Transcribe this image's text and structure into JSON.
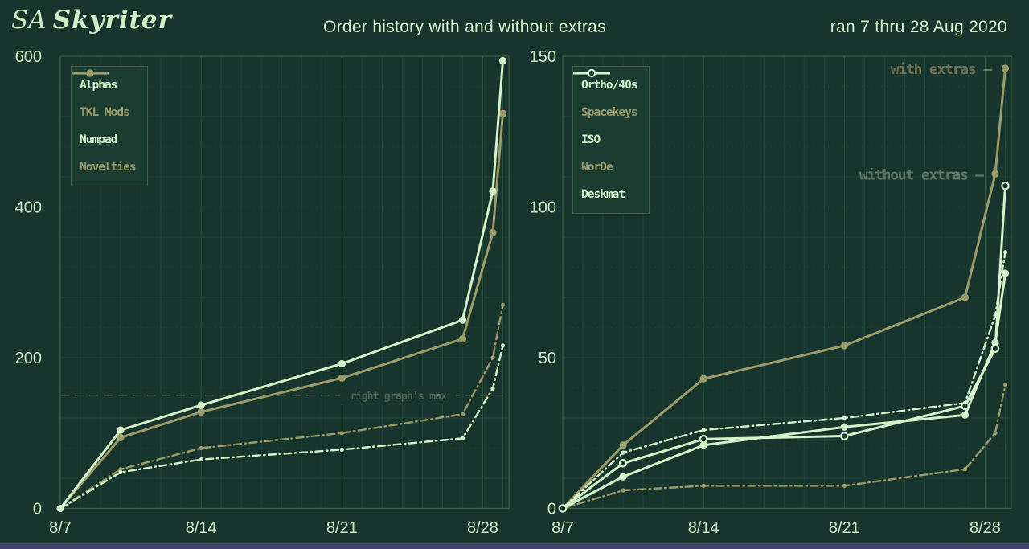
{
  "header": {
    "logo_prefix": "SA",
    "logo_name": "Skyriter",
    "title": "Order history with and without extras",
    "date_range": "ran 7 thru 28 Aug 2020"
  },
  "colors": {
    "background": "#17352c",
    "series_light": "#d6f2cb",
    "series_olive": "#9c9b6a",
    "axis_text": "#cdebc3",
    "title_text": "#d6f2cb",
    "logo_text": "#cfeec6",
    "grid_day": "#1f4337",
    "grid_week": "#2a5440",
    "grid_dot": "#1e4134",
    "plot_border": "#3c5e4c",
    "legend_bg": "#1b3c30",
    "legend_border": "#44604f",
    "ref_line": "#4d6450",
    "footer_bar": "#3e4367"
  },
  "chart_data": [
    {
      "type": "line",
      "position": "left",
      "x_unit": "date (Aug 2020)",
      "x_days": [
        7,
        10,
        14,
        21,
        27,
        28.5,
        29
      ],
      "x_ticks": [
        {
          "day": 7,
          "label": "8/7"
        },
        {
          "day": 14,
          "label": "8/14"
        },
        {
          "day": 21,
          "label": "8/21"
        },
        {
          "day": 28,
          "label": "8/28"
        }
      ],
      "ylim": [
        0,
        600
      ],
      "y_ticks": [
        {
          "value": 0,
          "label": "0"
        },
        {
          "value": 200,
          "label": "200"
        },
        {
          "value": 400,
          "label": "400"
        },
        {
          "value": 600,
          "label": "600"
        }
      ],
      "ref_line": {
        "value": 150,
        "label": "right graph's max",
        "label_center_day": 23.8
      },
      "series": [
        {
          "name": "Alphas",
          "color": "light",
          "style": "solid",
          "marker": "circle",
          "values": [
            0,
            104,
            137,
            192,
            250,
            421,
            594
          ]
        },
        {
          "name": "TKL Mods",
          "color": "olive",
          "style": "solid",
          "marker": "circle",
          "values": [
            0,
            94,
            128,
            173,
            225,
            366,
            524
          ]
        },
        {
          "name": "Numpad",
          "color": "light",
          "style": "dashdot",
          "marker": "dot",
          "values": [
            0,
            48,
            65,
            78,
            93,
            159,
            216
          ]
        },
        {
          "name": "Novelties",
          "color": "olive",
          "style": "dashdot",
          "marker": "dot",
          "values": [
            0,
            52,
            80,
            100,
            125,
            200,
            270
          ]
        }
      ]
    },
    {
      "type": "line",
      "position": "right",
      "x_unit": "date (Aug 2020)",
      "x_days": [
        7,
        10,
        14,
        21,
        27,
        28.5,
        29
      ],
      "x_ticks": [
        {
          "day": 7,
          "label": "8/7"
        },
        {
          "day": 14,
          "label": "8/14"
        },
        {
          "day": 21,
          "label": "8/21"
        },
        {
          "day": 28,
          "label": "8/28"
        }
      ],
      "ylim": [
        0,
        150
      ],
      "y_ticks": [
        {
          "value": 0,
          "label": "0"
        },
        {
          "value": 50,
          "label": "50"
        },
        {
          "value": 100,
          "label": "100"
        },
        {
          "value": 150,
          "label": "150"
        }
      ],
      "annotations": [
        {
          "text": "with extras –",
          "end_day": 28.3,
          "value": 146,
          "color": "#6b7356"
        },
        {
          "text": "without extras –",
          "end_day": 27.9,
          "value": 111,
          "color": "#617563"
        }
      ],
      "series": [
        {
          "name": "Ortho/40s",
          "color": "light",
          "style": "solid",
          "marker": "circle",
          "values": [
            0,
            10.5,
            21,
            27,
            31,
            55,
            78
          ]
        },
        {
          "name": "Spacekeys",
          "color": "olive",
          "style": "solid",
          "marker": "circle",
          "values": [
            0,
            21,
            43,
            54,
            70,
            111,
            146
          ]
        },
        {
          "name": "ISO",
          "color": "light",
          "style": "dashdot",
          "marker": "dot",
          "values": [
            0,
            18.5,
            26,
            30,
            35,
            64,
            85
          ]
        },
        {
          "name": "NorDe",
          "color": "olive",
          "style": "dashdot",
          "marker": "dot",
          "values": [
            0,
            6,
            7.5,
            7.5,
            13,
            25,
            41
          ]
        },
        {
          "name": "Deskmat",
          "color": "light",
          "style": "solid",
          "marker": "open-circle",
          "values": [
            0,
            15,
            23,
            24,
            34,
            53,
            107
          ]
        }
      ]
    }
  ]
}
